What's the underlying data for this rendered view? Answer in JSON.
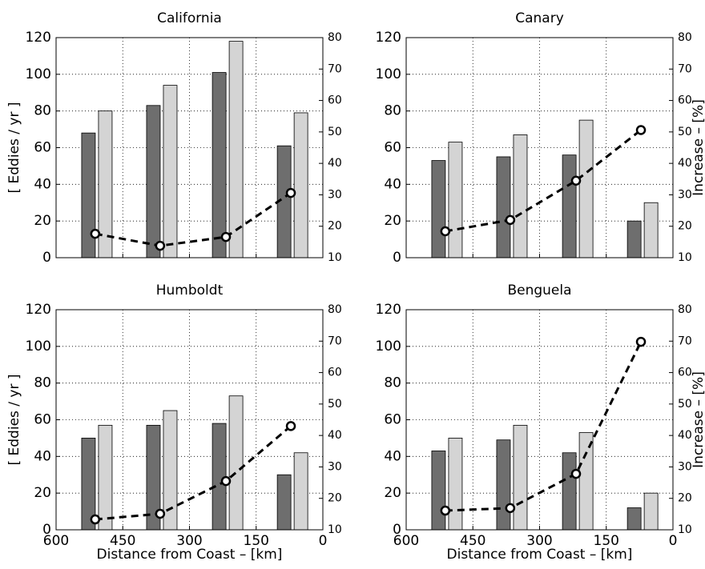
{
  "chart_data": [
    {
      "type": "bar",
      "title": "California",
      "ylabel": "[ Eddies / yr ]",
      "x": [
        512,
        366,
        218,
        72
      ],
      "xlim": [
        600,
        0
      ],
      "xticks": [
        600,
        450,
        300,
        150,
        0
      ],
      "xtick_labels": false,
      "ylim": [
        0,
        120
      ],
      "yticks": [
        0,
        20,
        40,
        60,
        80,
        100,
        120
      ],
      "y2lim": [
        10,
        80
      ],
      "y2ticks": [
        10,
        20,
        30,
        40,
        50,
        60,
        70,
        80
      ],
      "grid": true,
      "series": [
        {
          "type": "bar",
          "color": "#6e6e6e",
          "values": [
            68,
            83,
            101,
            61
          ]
        },
        {
          "type": "bar",
          "color": "#d4d4d4",
          "values": [
            80,
            94,
            118,
            79
          ]
        },
        {
          "type": "line",
          "axis": "y2",
          "color": "#000000",
          "values": [
            17.6,
            13.8,
            16.6,
            30.6
          ]
        }
      ]
    },
    {
      "type": "bar",
      "title": "Canary",
      "y2label": "Increase – [%]",
      "x": [
        512,
        366,
        218,
        72
      ],
      "xlim": [
        600,
        0
      ],
      "xticks": [
        600,
        450,
        300,
        150,
        0
      ],
      "xtick_labels": false,
      "ylim": [
        0,
        120
      ],
      "yticks": [
        0,
        20,
        40,
        60,
        80,
        100,
        120
      ],
      "y2lim": [
        10,
        80
      ],
      "y2ticks": [
        10,
        20,
        30,
        40,
        50,
        60,
        70,
        80
      ],
      "grid": true,
      "series": [
        {
          "type": "bar",
          "color": "#6e6e6e",
          "values": [
            53,
            55,
            56,
            20
          ]
        },
        {
          "type": "bar",
          "color": "#d4d4d4",
          "values": [
            63,
            67,
            75,
            30
          ]
        },
        {
          "type": "line",
          "axis": "y2",
          "color": "#000000",
          "values": [
            18.4,
            22,
            34.5,
            50.6
          ]
        }
      ]
    },
    {
      "type": "bar",
      "title": "Humboldt",
      "ylabel": "[ Eddies / yr ]",
      "xlabel": "Distance from Coast – [km]",
      "x": [
        512,
        366,
        218,
        72
      ],
      "xlim": [
        600,
        0
      ],
      "xticks": [
        600,
        450,
        300,
        150,
        0
      ],
      "xtick_labels": true,
      "ylim": [
        0,
        120
      ],
      "yticks": [
        0,
        20,
        40,
        60,
        80,
        100,
        120
      ],
      "y2lim": [
        10,
        80
      ],
      "y2ticks": [
        10,
        20,
        30,
        40,
        50,
        60,
        70,
        80
      ],
      "grid": true,
      "series": [
        {
          "type": "bar",
          "color": "#6e6e6e",
          "values": [
            50,
            57,
            58,
            30
          ]
        },
        {
          "type": "bar",
          "color": "#d4d4d4",
          "values": [
            57,
            65,
            73,
            42
          ]
        },
        {
          "type": "line",
          "axis": "y2",
          "color": "#000000",
          "values": [
            13.3,
            15.1,
            25.5,
            43
          ]
        }
      ]
    },
    {
      "type": "bar",
      "title": "Benguela",
      "y2label": "Increase – [%]",
      "xlabel": "Distance from Coast – [km]",
      "x": [
        512,
        366,
        218,
        72
      ],
      "xlim": [
        600,
        0
      ],
      "xticks": [
        600,
        450,
        300,
        150,
        0
      ],
      "xtick_labels": true,
      "ylim": [
        0,
        120
      ],
      "yticks": [
        0,
        20,
        40,
        60,
        80,
        100,
        120
      ],
      "y2lim": [
        10,
        80
      ],
      "y2ticks": [
        10,
        20,
        30,
        40,
        50,
        60,
        70,
        80
      ],
      "grid": true,
      "series": [
        {
          "type": "bar",
          "color": "#6e6e6e",
          "values": [
            43,
            49,
            42,
            12
          ]
        },
        {
          "type": "bar",
          "color": "#d4d4d4",
          "values": [
            50,
            57,
            53,
            20
          ]
        },
        {
          "type": "line",
          "axis": "y2",
          "color": "#000000",
          "values": [
            16.1,
            16.9,
            27.8,
            69.8
          ]
        }
      ]
    }
  ]
}
